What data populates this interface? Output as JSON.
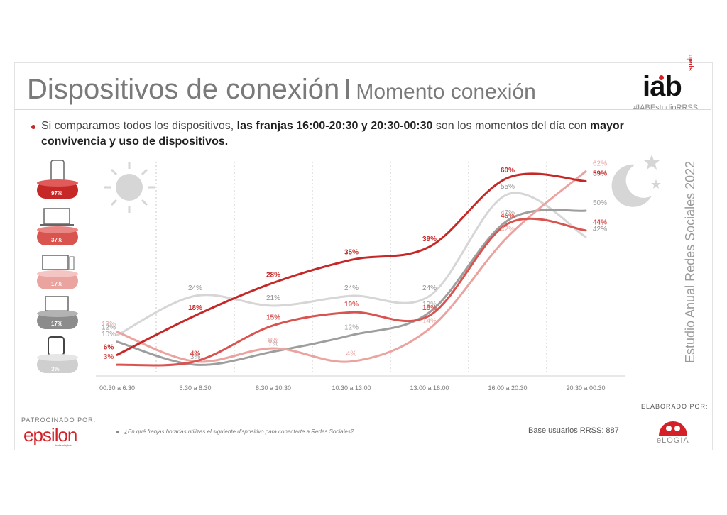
{
  "header": {
    "title_main": "Dispositivos de conexión",
    "title_separator": "I",
    "title_sub": "Momento conexión",
    "logo_text": "iab",
    "logo_country": "spain",
    "hashtag": "#IABEstudioRRSS"
  },
  "bullet": {
    "part1": "Si comparamos todos los dispositivos, ",
    "bold1": "las franjas 16:00-20:30 y 20:30-00:30",
    "part2": " son los momentos del día con ",
    "bold2": "mayor convivencia y uso de dispositivos."
  },
  "side_label": "Estudio Anual Redes Sociales 2022",
  "devices": [
    {
      "name": "Móvil",
      "pct": "97%",
      "icon": "phone-icon",
      "color": "#c62828"
    },
    {
      "name": "PC",
      "pct": "37%",
      "icon": "laptop-icon",
      "color": "#d9534f"
    },
    {
      "name": "Smart TV",
      "pct": "17%",
      "icon": "tv-icon",
      "color": "#e89a97"
    },
    {
      "name": "Tablet",
      "pct": "17%",
      "icon": "tablet-icon",
      "color": "#8c8c8c"
    },
    {
      "name": "Smart Watch",
      "pct": "3%",
      "icon": "watch-icon",
      "color": "#cfcfcf"
    }
  ],
  "chart_data": {
    "type": "line",
    "categories": [
      "00:30 a 6:30",
      "6:30 a 8:30",
      "8:30 a 10:30",
      "10:30 a 13:00",
      "13:00 a 16:00",
      "16:00 a 20:30",
      "20:30 a 00:30"
    ],
    "ylim": [
      0,
      65
    ],
    "grid": "vertical dashed",
    "series": [
      {
        "device": "Móvil",
        "color": "#c62828",
        "values": [
          6,
          18,
          28,
          35,
          39,
          60,
          59
        ],
        "labels": [
          "6%",
          "18%",
          "28%",
          "35%",
          "39%",
          "60%",
          "59%"
        ]
      },
      {
        "device": "PC",
        "color": "#d9534f",
        "values": [
          3,
          4,
          15,
          19,
          18,
          46,
          44
        ],
        "labels": [
          "3%",
          "4%",
          "15%",
          "19%",
          "18%",
          "46%",
          "44%"
        ]
      },
      {
        "device": "Smart TV",
        "color": "#eba3a0",
        "values": [
          13,
          4,
          8,
          4,
          14,
          42,
          62
        ],
        "labels": [
          "13%",
          "4%",
          "8%",
          "4%",
          "14%",
          "42%",
          "62%"
        ]
      },
      {
        "device": "Tablet",
        "color": "#9e9e9e",
        "values": [
          10,
          3,
          7,
          12,
          19,
          47,
          50
        ],
        "labels": [
          "10%",
          "3%",
          "7%",
          "12%",
          "19%",
          "47%",
          "50%"
        ]
      },
      {
        "device": "Smart Watch",
        "color": "#d6d6d6",
        "values": [
          12,
          24,
          21,
          24,
          24,
          55,
          42
        ],
        "labels": [
          "12%",
          "24%",
          "21%",
          "24%",
          "24%",
          "55%",
          "42%"
        ]
      }
    ]
  },
  "footer": {
    "sponsor_label": "PATROCINADO POR:",
    "sponsor_name": "epsilon",
    "sponsor_sub": "technologies",
    "question": "¿En qué franjas horarias utilizas el siguiente dispositivo para conectarte a Redes Sociales?",
    "base": "Base usuarios RRSS: 887",
    "made_by_label": "ELABORADO POR:",
    "made_by_name": "eLOGIA"
  }
}
